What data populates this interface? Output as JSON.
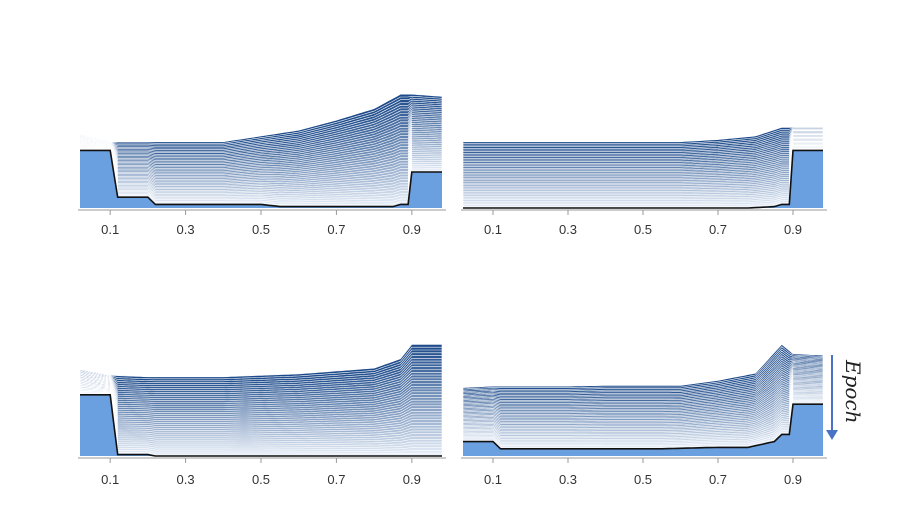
{
  "colors": {
    "base_fill": "#6a9fe0",
    "layer_light": "#eef4fc",
    "layer_dark": "#1c4a8a",
    "layer_stroke": "#ffffff",
    "baseline": "#111111",
    "axis": "#999999",
    "arrow": "#4a72c4"
  },
  "annotation": {
    "label": "Epoch",
    "arrow_icon": "arrow-down-icon"
  },
  "chart_data": [
    {
      "type": "area",
      "panel": "top-left",
      "x": [
        0.02,
        0.1,
        0.2,
        0.3,
        0.4,
        0.5,
        0.6,
        0.7,
        0.8,
        0.87,
        0.9,
        0.98
      ],
      "baseline": [
        0.8,
        0.8,
        0.15,
        0.15,
        0.05,
        0.05,
        0.02,
        0.02,
        0.02,
        0.02,
        0.05,
        0.05,
        0.5,
        0.5
      ],
      "final_profile": [
        1.02,
        0.92,
        0.92,
        0.92,
        0.92,
        1.0,
        1.08,
        1.22,
        1.38,
        1.58,
        1.58,
        1.55
      ],
      "layers": 40,
      "xticks": [
        "0.1",
        "0.3",
        "0.5",
        "0.7",
        "0.9"
      ]
    },
    {
      "type": "area",
      "panel": "top-right",
      "x": [
        0.02,
        0.1,
        0.2,
        0.3,
        0.4,
        0.5,
        0.6,
        0.7,
        0.8,
        0.87,
        0.9,
        0.98
      ],
      "baseline": [
        0.0,
        0.0,
        0.0,
        0.0,
        0.0,
        0.0,
        0.0,
        0.0,
        0.0,
        0.02,
        0.05,
        0.05,
        0.8,
        0.8
      ],
      "final_profile": [
        0.92,
        0.92,
        0.92,
        0.92,
        0.92,
        0.92,
        0.92,
        0.95,
        1.0,
        1.12,
        1.12,
        1.12
      ],
      "layers": 40,
      "xticks": [
        "0.1",
        "0.3",
        "0.5",
        "0.7",
        "0.9"
      ]
    },
    {
      "type": "area",
      "panel": "bottom-left",
      "x": [
        0.02,
        0.1,
        0.2,
        0.3,
        0.4,
        0.5,
        0.6,
        0.7,
        0.8,
        0.87,
        0.9,
        0.98
      ],
      "baseline": [
        0.85,
        0.85,
        0.02,
        0.02,
        0.0,
        0.0,
        0.0,
        0.0,
        0.0,
        0.0,
        0.0,
        0.0,
        0.0,
        0.0
      ],
      "final_profile": [
        1.2,
        1.12,
        1.1,
        1.1,
        1.1,
        1.12,
        1.14,
        1.18,
        1.22,
        1.35,
        1.55,
        1.55
      ],
      "layers": 40,
      "xticks": [
        "0.1",
        "0.3",
        "0.5",
        "0.7",
        "0.9"
      ]
    },
    {
      "type": "area",
      "panel": "bottom-right",
      "x": [
        0.02,
        0.1,
        0.2,
        0.3,
        0.4,
        0.5,
        0.6,
        0.7,
        0.8,
        0.87,
        0.9,
        0.98
      ],
      "baseline": [
        0.2,
        0.2,
        0.1,
        0.1,
        0.1,
        0.1,
        0.1,
        0.12,
        0.12,
        0.2,
        0.3,
        0.3,
        0.72,
        0.72
      ],
      "final_profile": [
        0.95,
        0.97,
        0.97,
        0.97,
        0.98,
        0.98,
        0.98,
        1.05,
        1.15,
        1.55,
        1.42,
        1.4
      ],
      "layers": 40,
      "xticks": [
        "0.1",
        "0.3",
        "0.5",
        "0.7",
        "0.9"
      ]
    }
  ]
}
